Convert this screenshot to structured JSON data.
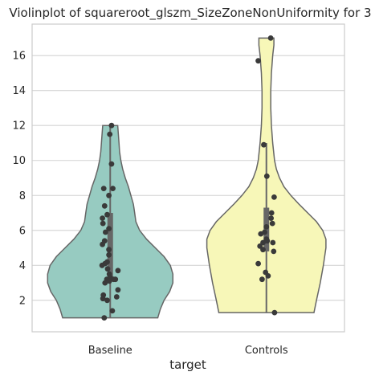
{
  "chart_data": {
    "type": "violin",
    "title": "Violinplot of squareroot_glszm_SizeZoneNonUniformity for 3",
    "xlabel": "target",
    "ylabel": "",
    "categories": [
      "Baseline",
      "Controls"
    ],
    "ylim": [
      0.2,
      17.8
    ],
    "yticks": [
      2,
      4,
      6,
      8,
      10,
      12,
      14,
      16
    ],
    "grid": true,
    "colors": {
      "Baseline": "#97cbc1",
      "Controls": "#f7f7b8",
      "points": "#3a3a3a",
      "outline": "#666666",
      "box": "#666666"
    },
    "violins": [
      {
        "name": "Baseline",
        "profile": [
          [
            1.0,
            0.76
          ],
          [
            1.5,
            0.8
          ],
          [
            2.0,
            0.86
          ],
          [
            2.5,
            0.95
          ],
          [
            3.0,
            1.0
          ],
          [
            3.5,
            1.0
          ],
          [
            4.0,
            0.96
          ],
          [
            4.5,
            0.86
          ],
          [
            5.0,
            0.72
          ],
          [
            5.5,
            0.58
          ],
          [
            6.0,
            0.47
          ],
          [
            6.5,
            0.41
          ],
          [
            7.0,
            0.39
          ],
          [
            7.5,
            0.37
          ],
          [
            8.0,
            0.33
          ],
          [
            8.5,
            0.29
          ],
          [
            9.0,
            0.24
          ],
          [
            9.5,
            0.2
          ],
          [
            10.0,
            0.17
          ],
          [
            10.5,
            0.15
          ],
          [
            11.0,
            0.14
          ],
          [
            11.5,
            0.13
          ],
          [
            12.0,
            0.12
          ]
        ],
        "whisker": [
          1.0,
          12.0
        ],
        "iqr": [
          3.2,
          7.0
        ],
        "points": [
          [
            0.03,
            12.0
          ],
          [
            -0.01,
            11.5
          ],
          [
            0.03,
            9.8
          ],
          [
            -0.15,
            8.4
          ],
          [
            0.06,
            8.4
          ],
          [
            -0.03,
            8.0
          ],
          [
            -0.13,
            7.4
          ],
          [
            -0.07,
            6.9
          ],
          [
            -0.18,
            6.7
          ],
          [
            -0.17,
            6.4
          ],
          [
            -0.03,
            6.1
          ],
          [
            -0.11,
            5.9
          ],
          [
            -0.13,
            5.4
          ],
          [
            -0.18,
            5.2
          ],
          [
            -0.03,
            4.9
          ],
          [
            0.18,
            3.7
          ],
          [
            -0.03,
            4.6
          ],
          [
            -0.07,
            4.2
          ],
          [
            -0.12,
            4.1
          ],
          [
            -0.19,
            4.0
          ],
          [
            -0.06,
            3.8
          ],
          [
            -0.02,
            3.5
          ],
          [
            0.0,
            3.3
          ],
          [
            -0.08,
            3.2
          ],
          [
            -0.12,
            3.0
          ],
          [
            0.08,
            3.2
          ],
          [
            0.12,
            3.2
          ],
          [
            -0.02,
            3.1
          ],
          [
            0.18,
            2.6
          ],
          [
            -0.16,
            2.3
          ],
          [
            0.15,
            2.2
          ],
          [
            -0.17,
            2.1
          ],
          [
            -0.07,
            2.0
          ],
          [
            0.05,
            1.4
          ],
          [
            -0.14,
            1.0
          ]
        ]
      },
      {
        "name": "Controls",
        "profile": [
          [
            1.3,
            0.76
          ],
          [
            2.0,
            0.8
          ],
          [
            3.0,
            0.86
          ],
          [
            4.0,
            0.91
          ],
          [
            5.0,
            0.95
          ],
          [
            5.5,
            0.95
          ],
          [
            6.0,
            0.9
          ],
          [
            6.5,
            0.8
          ],
          [
            7.0,
            0.66
          ],
          [
            7.5,
            0.52
          ],
          [
            8.0,
            0.39
          ],
          [
            8.5,
            0.28
          ],
          [
            9.0,
            0.21
          ],
          [
            9.5,
            0.16
          ],
          [
            10.0,
            0.13
          ],
          [
            11.0,
            0.1
          ],
          [
            12.0,
            0.08
          ],
          [
            13.0,
            0.07
          ],
          [
            14.0,
            0.07
          ],
          [
            15.0,
            0.08
          ],
          [
            16.0,
            0.1
          ],
          [
            16.6,
            0.12
          ],
          [
            17.0,
            0.12
          ]
        ],
        "whisker": [
          1.3,
          11.0
        ],
        "iqr": [
          4.8,
          7.3
        ],
        "points": [
          [
            0.1,
            17.0
          ],
          [
            -0.19,
            15.7
          ],
          [
            -0.06,
            10.9
          ],
          [
            0.01,
            9.1
          ],
          [
            0.18,
            7.9
          ],
          [
            0.12,
            7.0
          ],
          [
            0.11,
            6.7
          ],
          [
            0.14,
            6.4
          ],
          [
            0.0,
            6.2
          ],
          [
            -0.04,
            5.9
          ],
          [
            -0.13,
            5.8
          ],
          [
            0.0,
            5.5
          ],
          [
            0.02,
            5.4
          ],
          [
            -0.08,
            5.3
          ],
          [
            0.15,
            5.3
          ],
          [
            -0.15,
            5.1
          ],
          [
            -0.08,
            4.9
          ],
          [
            0.17,
            4.8
          ],
          [
            -0.19,
            4.1
          ],
          [
            -0.02,
            3.6
          ],
          [
            0.04,
            3.4
          ],
          [
            -0.1,
            3.2
          ],
          [
            0.19,
            1.3
          ]
        ]
      }
    ]
  }
}
